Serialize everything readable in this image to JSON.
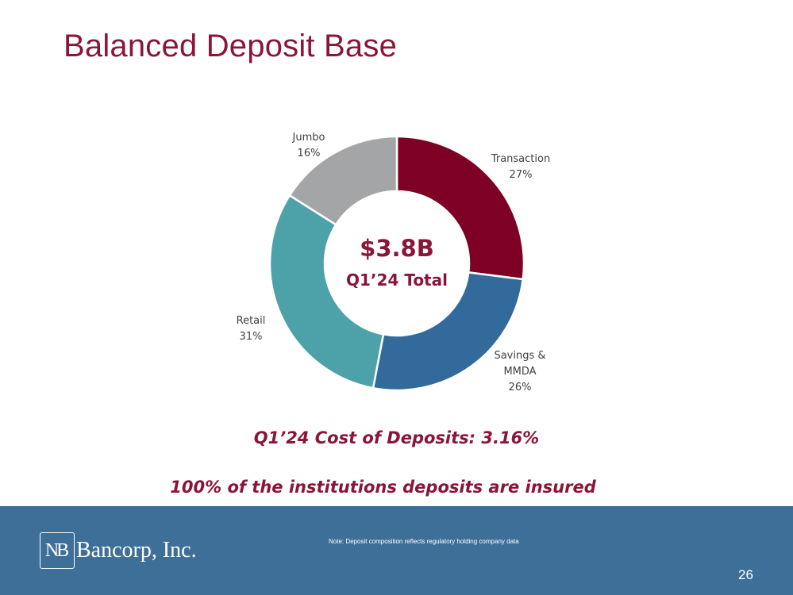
{
  "slide": {
    "title": "Balanced Deposit Base",
    "cost_of_deposits": "Q1’24 Cost of Deposits: 3.16%",
    "insured_note": "100% of the institutions deposits are insured",
    "page_number": "26"
  },
  "footer": {
    "logo_mark": "NB",
    "logo_text": "Bancorp, Inc.",
    "note": "Note: Deposit composition reflects regulatory holding company data"
  },
  "chart_data": {
    "type": "pie",
    "center_value": "$3.8B",
    "center_label": "Q1’24 Total",
    "slices": [
      {
        "label": "Transaction",
        "label_lines": [
          "Transaction"
        ],
        "value": 27,
        "value_label": "27%",
        "color": "#7f0025"
      },
      {
        "label": "Savings & MMDA",
        "label_lines": [
          "Savings &",
          "MMDA"
        ],
        "value": 26,
        "value_label": "26%",
        "color": "#336a9c"
      },
      {
        "label": "Retail",
        "label_lines": [
          "Retail"
        ],
        "value": 31,
        "value_label": "31%",
        "color": "#4da1a8"
      },
      {
        "label": "Jumbo",
        "label_lines": [
          "Jumbo"
        ],
        "value": 16,
        "value_label": "16%",
        "color": "#a4a5a7"
      }
    ],
    "legend": "none"
  }
}
